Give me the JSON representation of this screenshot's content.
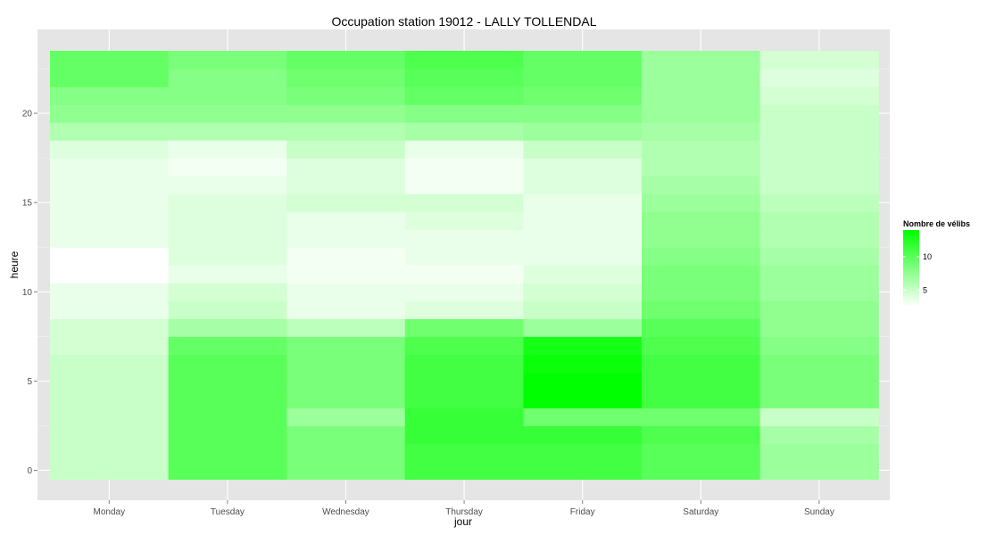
{
  "chart_data": {
    "type": "heatmap",
    "title": "Occupation station 19012 - LALLY TOLLENDAL",
    "xlabel": "jour",
    "ylabel": "heure",
    "x_categories": [
      "Monday",
      "Tuesday",
      "Wednesday",
      "Thursday",
      "Friday",
      "Saturday",
      "Sunday"
    ],
    "y_ticks": [
      0,
      5,
      10,
      15,
      20
    ],
    "y_range": [
      0,
      23
    ],
    "grid": true,
    "legend": {
      "title": "Nombre de vélibs",
      "ticks": [
        5,
        10
      ],
      "min": 2.5,
      "max": 14,
      "low_color": "#ffffff",
      "high_color": "#00ff00",
      "placement": "right"
    },
    "background_color": "#e5e5e5",
    "values": {
      "Monday": [
        5,
        5,
        5,
        5,
        5,
        5,
        5,
        4.5,
        4.5,
        3.5,
        3.5,
        2.5,
        2.5,
        3.5,
        3.5,
        3.5,
        3.5,
        3.5,
        4,
        6,
        7.5,
        8,
        9.5,
        9.5
      ],
      "Tuesday": [
        10,
        10,
        10,
        10,
        10,
        10,
        10,
        9.5,
        6.5,
        5,
        4.5,
        3.5,
        4,
        4,
        4,
        4,
        3.5,
        3,
        3.5,
        6,
        7.5,
        8,
        8,
        8.5
      ],
      "Wednesday": [
        8.5,
        8.5,
        8.5,
        7,
        8.5,
        8.5,
        8.5,
        8.5,
        5.5,
        3.5,
        3.5,
        3,
        3,
        3.5,
        3.5,
        4.5,
        4,
        4,
        5,
        6,
        7.5,
        8.5,
        9,
        9.5
      ],
      "Thursday": [
        11,
        11,
        11.5,
        11.5,
        11,
        11,
        11,
        10.5,
        9,
        4,
        3.5,
        3,
        3.5,
        3.5,
        4,
        4.5,
        3,
        3,
        3.5,
        6.5,
        8,
        9.5,
        10,
        10.5
      ],
      "Friday": [
        11,
        11,
        11.5,
        9,
        14,
        14,
        13.5,
        13,
        7,
        5,
        4.5,
        4,
        3.5,
        3.5,
        3.5,
        3.5,
        4,
        4,
        5,
        7,
        8,
        9,
        9.5,
        9.5
      ],
      "Saturday": [
        10,
        10,
        10.5,
        9,
        11,
        11,
        11,
        10.5,
        10,
        9,
        8.5,
        8.5,
        8,
        7.5,
        7.5,
        7,
        6.5,
        6,
        6,
        6.5,
        7,
        7,
        7,
        7
      ],
      "Sunday": [
        7,
        7,
        6.5,
        5,
        8.5,
        8.5,
        8.5,
        8,
        7.5,
        7.5,
        7,
        7,
        6.5,
        6,
        6,
        5.5,
        5,
        5,
        5,
        5,
        5,
        4.5,
        4,
        4.5
      ]
    }
  }
}
